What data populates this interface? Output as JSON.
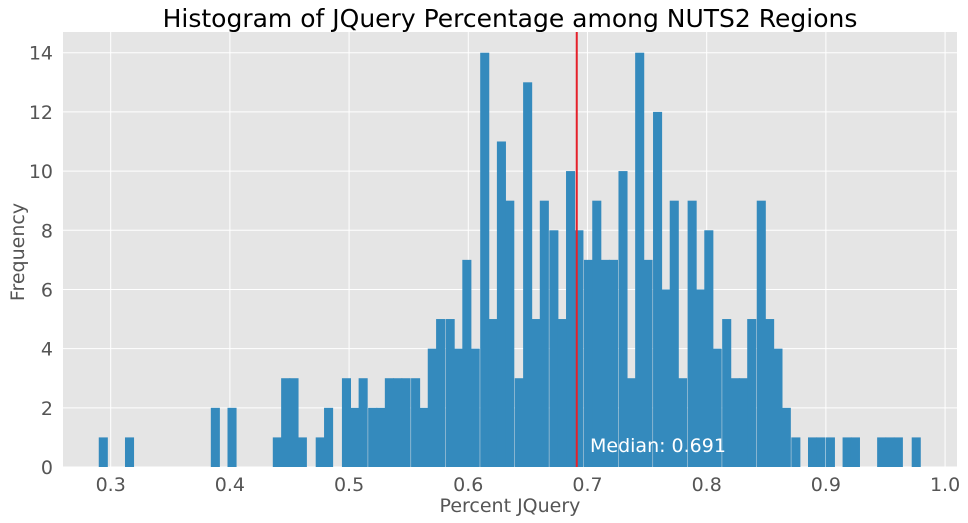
{
  "chart_data": {
    "type": "bar",
    "title": "Histogram of JQuery Percentage among NUTS2 Regions",
    "xlabel": "Percent JQuery",
    "ylabel": "Frequency",
    "xlim": [
      0.26,
      1.01
    ],
    "ylim": [
      0,
      14.7
    ],
    "xticks": [
      0.3,
      0.4,
      0.5,
      0.6,
      0.7,
      0.8,
      0.9,
      1.0
    ],
    "xtick_labels": [
      "0.3",
      "0.4",
      "0.5",
      "0.6",
      "0.7",
      "0.8",
      "0.9",
      "1.0"
    ],
    "yticks": [
      0,
      2,
      4,
      6,
      8,
      10,
      12,
      14
    ],
    "ytick_labels": [
      "0",
      "2",
      "4",
      "6",
      "8",
      "10",
      "12",
      "14"
    ],
    "grid": true,
    "bin_width": 0.00727,
    "bins": [
      [
        0.29,
        1
      ],
      [
        0.312,
        1
      ],
      [
        0.384,
        2
      ],
      [
        0.398,
        2
      ],
      [
        0.436,
        1
      ],
      [
        0.443,
        3
      ],
      [
        0.45,
        3
      ],
      [
        0.457,
        1
      ],
      [
        0.472,
        1
      ],
      [
        0.479,
        2
      ],
      [
        0.494,
        3
      ],
      [
        0.501,
        2
      ],
      [
        0.508,
        3
      ],
      [
        0.516,
        2
      ],
      [
        0.523,
        2
      ],
      [
        0.53,
        3
      ],
      [
        0.537,
        3
      ],
      [
        0.544,
        3
      ],
      [
        0.552,
        3
      ],
      [
        0.559,
        2
      ],
      [
        0.566,
        4
      ],
      [
        0.573,
        5
      ],
      [
        0.581,
        5
      ],
      [
        0.588,
        4
      ],
      [
        0.595,
        7
      ],
      [
        0.602,
        4
      ],
      [
        0.61,
        14
      ],
      [
        0.617,
        5
      ],
      [
        0.624,
        11
      ],
      [
        0.631,
        9
      ],
      [
        0.639,
        3
      ],
      [
        0.646,
        13
      ],
      [
        0.653,
        5
      ],
      [
        0.66,
        9
      ],
      [
        0.668,
        8
      ],
      [
        0.675,
        5
      ],
      [
        0.682,
        10
      ],
      [
        0.689,
        8
      ],
      [
        0.697,
        7
      ],
      [
        0.704,
        9
      ],
      [
        0.711,
        7
      ],
      [
        0.718,
        7
      ],
      [
        0.726,
        10
      ],
      [
        0.733,
        3
      ],
      [
        0.74,
        14
      ],
      [
        0.747,
        7
      ],
      [
        0.755,
        12
      ],
      [
        0.762,
        6
      ],
      [
        0.769,
        9
      ],
      [
        0.776,
        3
      ],
      [
        0.784,
        9
      ],
      [
        0.791,
        6
      ],
      [
        0.798,
        8
      ],
      [
        0.805,
        4
      ],
      [
        0.813,
        5
      ],
      [
        0.82,
        3
      ],
      [
        0.827,
        3
      ],
      [
        0.834,
        5
      ],
      [
        0.842,
        9
      ],
      [
        0.849,
        5
      ],
      [
        0.856,
        4
      ],
      [
        0.863,
        2
      ],
      [
        0.871,
        1
      ],
      [
        0.885,
        1
      ],
      [
        0.892,
        1
      ],
      [
        0.9,
        1
      ],
      [
        0.914,
        1
      ],
      [
        0.921,
        1
      ],
      [
        0.943,
        1
      ],
      [
        0.95,
        1
      ],
      [
        0.957,
        1
      ],
      [
        0.972,
        1
      ]
    ],
    "median": 0.691,
    "median_label": "Median: 0.691",
    "colors": {
      "bar": "#348abd",
      "median_line": "#e5202a",
      "background": "#e5e5e5",
      "grid": "#ffffff",
      "annotation": "#ffffff"
    }
  }
}
